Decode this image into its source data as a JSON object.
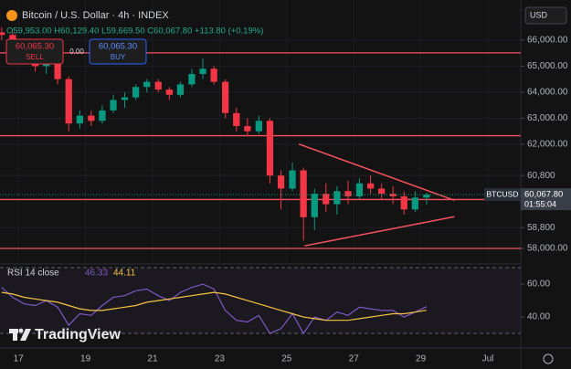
{
  "header": {
    "title": "Bitcoin / U.S. Dollar · 4h · INDEX",
    "ohlc_legend": "O59,953.00 H60,129.40 L59,669.50 C60,067.80 +113.80 (+0.19%)",
    "sell_price": "60,065.30",
    "sell_label": "SELL",
    "spread": "0.00",
    "buy_price": "60,065.30",
    "buy_label": "BUY",
    "currency": "USD",
    "logo": "TradingView"
  },
  "chart_data": [
    {
      "type": "candlestick",
      "x": [
        16.5,
        16.83,
        17.17,
        17.5,
        17.83,
        18.17,
        18.5,
        18.83,
        19.17,
        19.5,
        19.83,
        20.17,
        20.5,
        20.83,
        21.17,
        21.5,
        21.83,
        22.17,
        22.5,
        22.83,
        23.17,
        23.5,
        23.83,
        24.17,
        24.5,
        24.83,
        25.17,
        25.5,
        25.83,
        26.17,
        26.5,
        26.83,
        27.17,
        27.5,
        27.83,
        28.17,
        28.5,
        28.83,
        29.17
      ],
      "open": [
        66300,
        66200,
        65700,
        65400,
        65000,
        65100,
        64500,
        62800,
        63100,
        62900,
        63300,
        63700,
        63800,
        64200,
        64400,
        64100,
        63900,
        64300,
        64700,
        64900,
        64400,
        63200,
        62700,
        62500,
        62900,
        60800,
        60300,
        61000,
        59200,
        60100,
        59700,
        60200,
        60000,
        60500,
        60300,
        60100,
        60000,
        59500,
        59953
      ],
      "high": [
        66500,
        66300,
        65800,
        65500,
        65200,
        65200,
        64600,
        63300,
        63300,
        63500,
        63900,
        64000,
        64300,
        64500,
        64500,
        64200,
        64400,
        64900,
        65300,
        65000,
        64500,
        63400,
        63000,
        63100,
        63000,
        61000,
        61300,
        61100,
        60300,
        60500,
        60400,
        60600,
        60700,
        60800,
        60500,
        60400,
        60200,
        60200,
        60129.4
      ],
      "low": [
        66000,
        65600,
        65200,
        64800,
        64700,
        64300,
        62500,
        62600,
        62700,
        62800,
        63200,
        63400,
        63700,
        64000,
        64000,
        63700,
        63800,
        64200,
        64500,
        64300,
        63000,
        62500,
        62300,
        62400,
        60500,
        59500,
        60200,
        58300,
        58700,
        59400,
        59300,
        59700,
        59900,
        60100,
        59900,
        59700,
        59300,
        59400,
        59669.5
      ],
      "close": [
        66200,
        65700,
        65400,
        65000,
        65100,
        64500,
        62800,
        63100,
        62900,
        63300,
        63700,
        63800,
        64200,
        64400,
        64100,
        63900,
        64300,
        64700,
        64900,
        64400,
        63200,
        62700,
        62500,
        62900,
        60800,
        60300,
        61000,
        59200,
        60100,
        59700,
        60200,
        60000,
        60500,
        60300,
        60100,
        60000,
        59500,
        59954,
        60067.8
      ],
      "up_color": "#089981",
      "down_color": "#f23645",
      "xlim": [
        16.45,
        31.98
      ],
      "xticks": [
        17,
        19,
        21,
        23,
        25,
        27,
        29,
        {
          "value": 31,
          "label": "Jul"
        }
      ],
      "ylim": [
        57440,
        67540
      ],
      "yticks": [
        {
          "value": 66000,
          "label": "66,000.00"
        },
        {
          "value": 65000,
          "label": "65,000.00"
        },
        {
          "value": 64000,
          "label": "64,000.00"
        },
        {
          "value": 63000,
          "label": "63,000.00"
        },
        {
          "value": 62000,
          "label": "62,000.00"
        },
        {
          "value": 60800,
          "label": "60,800"
        },
        {
          "value": 58800,
          "label": "58,800"
        },
        {
          "value": 58000,
          "label": "58,000.00"
        }
      ],
      "levels": [
        65510,
        62330,
        59880,
        58000
      ],
      "trendlines": [
        {
          "x": [
            25.36,
            30.0
          ],
          "y": [
            62010,
            59850
          ]
        },
        {
          "x": [
            25.53,
            30.0
          ],
          "y": [
            58100,
            59220
          ]
        }
      ],
      "drawing_color": "#f7525f",
      "price_tag": {
        "symbol": "BTCUSD",
        "price": "60,067.80",
        "countdown": "01:55:04"
      }
    },
    {
      "type": "line",
      "title": "RSI 14 close",
      "x": [
        16.5,
        16.83,
        17.17,
        17.5,
        17.83,
        18.17,
        18.5,
        18.83,
        19.17,
        19.5,
        19.83,
        20.17,
        20.5,
        20.83,
        21.17,
        21.5,
        21.83,
        22.17,
        22.5,
        22.83,
        23.17,
        23.5,
        23.83,
        24.17,
        24.5,
        24.83,
        25.17,
        25.5,
        25.83,
        26.17,
        26.5,
        26.83,
        27.17,
        27.5,
        27.83,
        28.17,
        28.5,
        28.83,
        29.17
      ],
      "series": [
        {
          "color": "#7e57c2",
          "values": [
            58,
            52,
            48,
            47,
            50,
            46,
            35,
            42,
            41,
            47,
            52,
            53,
            56,
            57,
            53,
            50,
            55,
            58,
            60,
            57,
            44,
            38,
            37,
            41,
            30,
            33,
            42,
            30,
            40,
            38,
            43,
            41,
            46,
            45,
            44,
            44,
            40,
            43,
            46.33
          ]
        },
        {
          "color": "#f5c342",
          "values": [
            55,
            54,
            52,
            51,
            50,
            49,
            47,
            45,
            44,
            44,
            45,
            46,
            47,
            49,
            50,
            51,
            52,
            53,
            54,
            55,
            54,
            52,
            50,
            48,
            46,
            44,
            42,
            40,
            39,
            38,
            38,
            38,
            39,
            40,
            41,
            42,
            42,
            43,
            44.11
          ]
        }
      ],
      "xlim": [
        16.45,
        31.98
      ],
      "ylim": [
        21.7,
        71.7
      ],
      "yticks": [
        {
          "value": 60,
          "label": "60.00"
        },
        {
          "value": 40,
          "label": "40.00"
        }
      ],
      "band": [
        30,
        70
      ]
    }
  ]
}
